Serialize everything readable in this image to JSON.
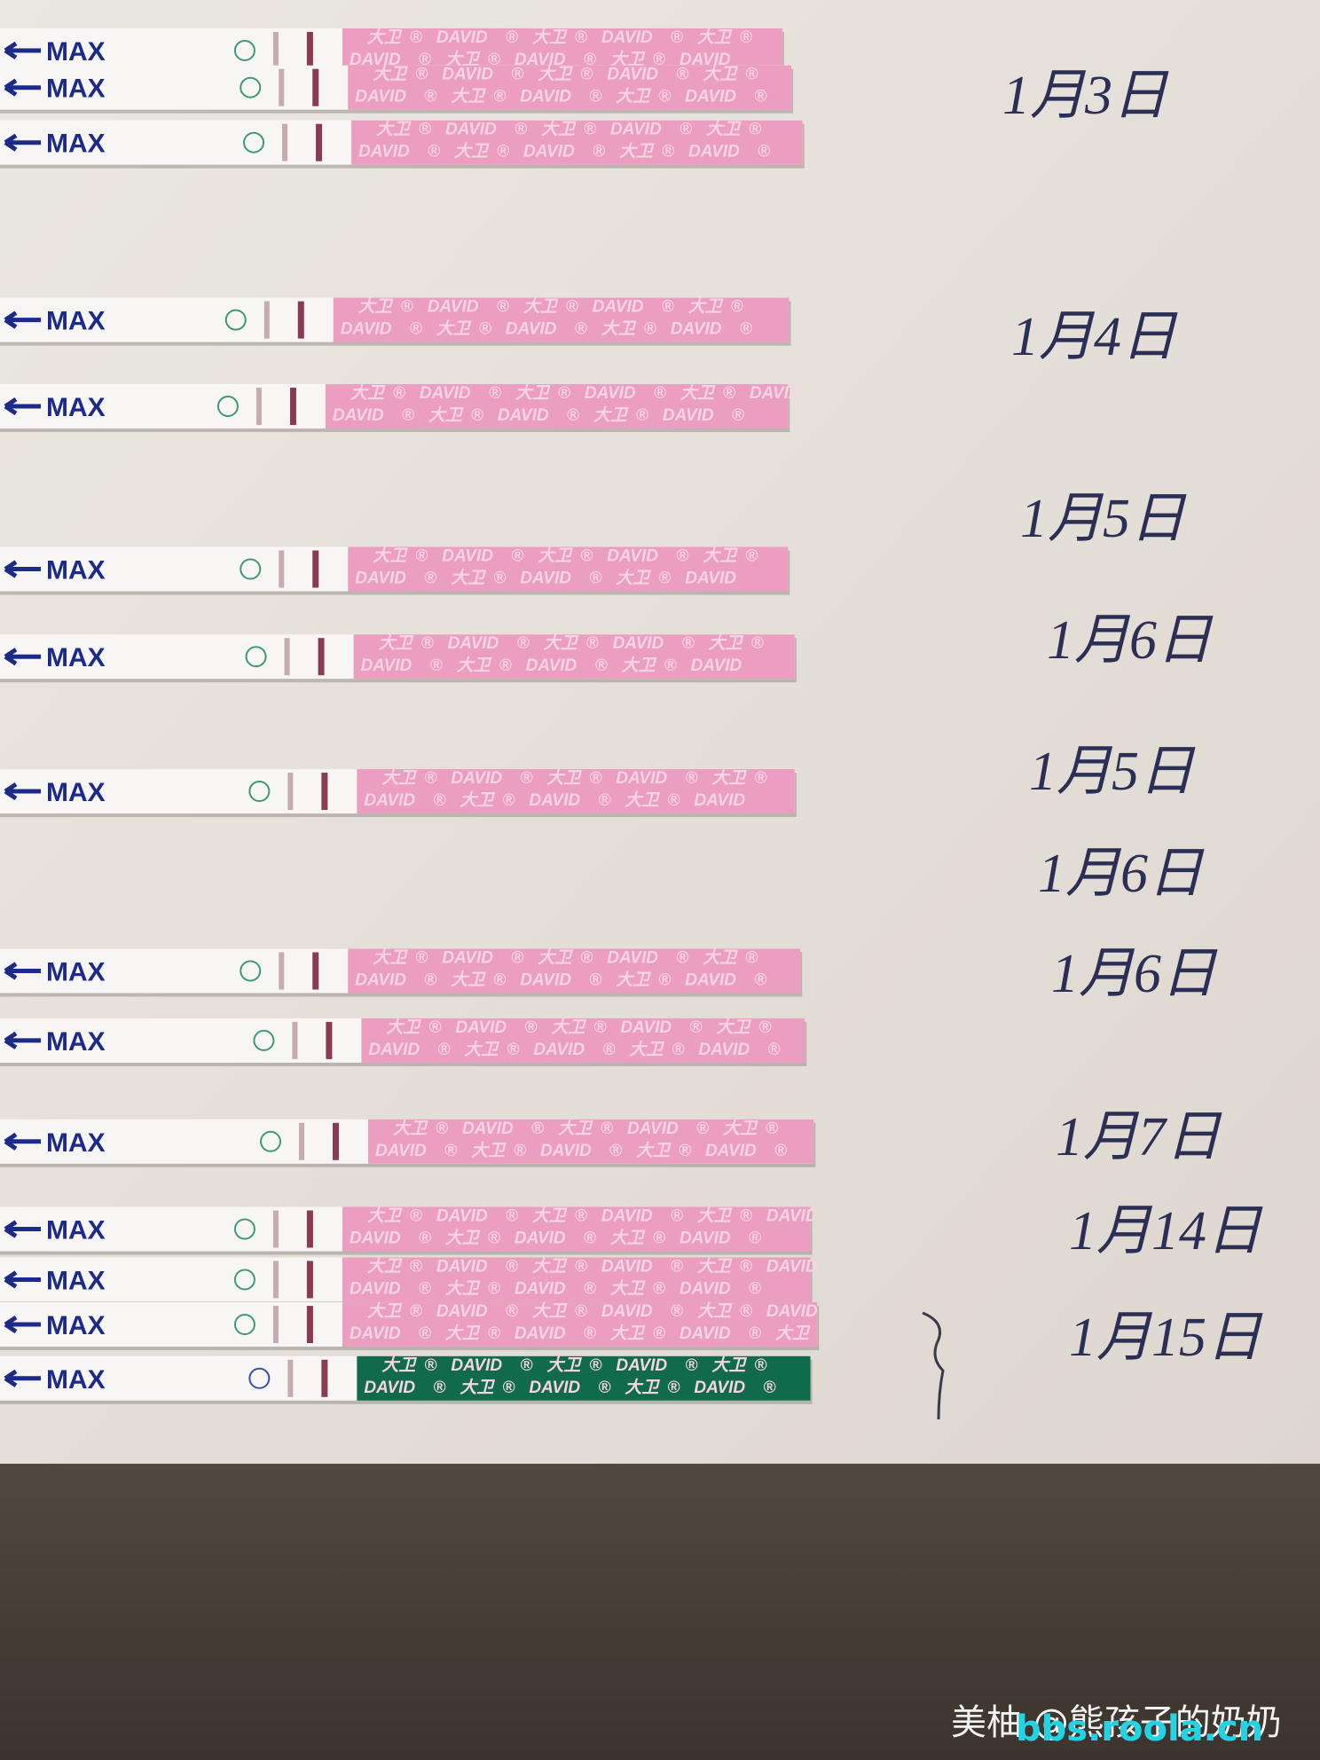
{
  "strip": {
    "label": "MAX",
    "brand": "DAVID",
    "brand_cn": "大卫",
    "mark": "®"
  },
  "dates": [
    "1月3日",
    "1月4日",
    "1月5日",
    "1月6日",
    "1月5日",
    "1月6日",
    "1月6日",
    "1月7日",
    "1月14日",
    "1月15日"
  ],
  "watermark": {
    "source": "美柚 @熊孩子的奶奶",
    "site": "bbs.roola.cn"
  }
}
